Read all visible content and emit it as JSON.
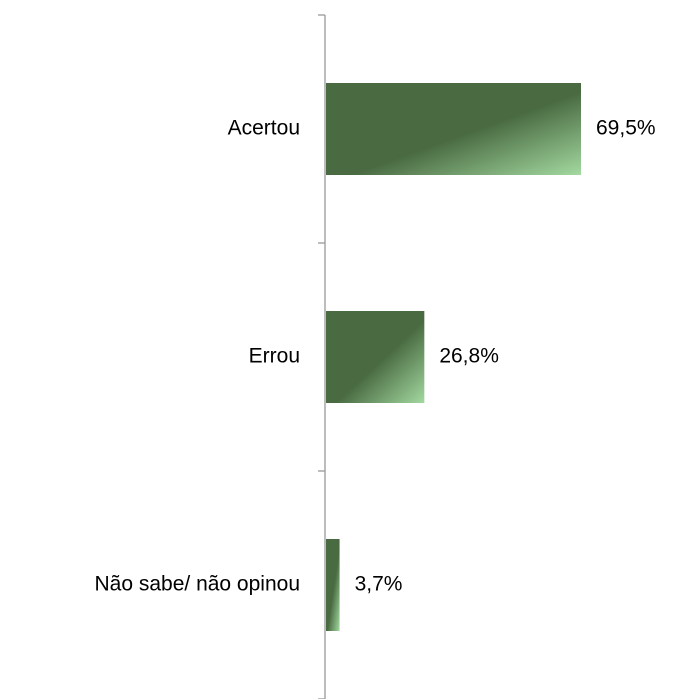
{
  "chart_data": {
    "type": "bar",
    "orientation": "horizontal",
    "categories": [
      "Acertou",
      "Errou",
      "Não sabe/ não opinou"
    ],
    "values": [
      69.5,
      26.8,
      3.7
    ],
    "value_labels": [
      "69,5%",
      "26,8%",
      "3,7%"
    ],
    "color": "#4a6b42"
  }
}
